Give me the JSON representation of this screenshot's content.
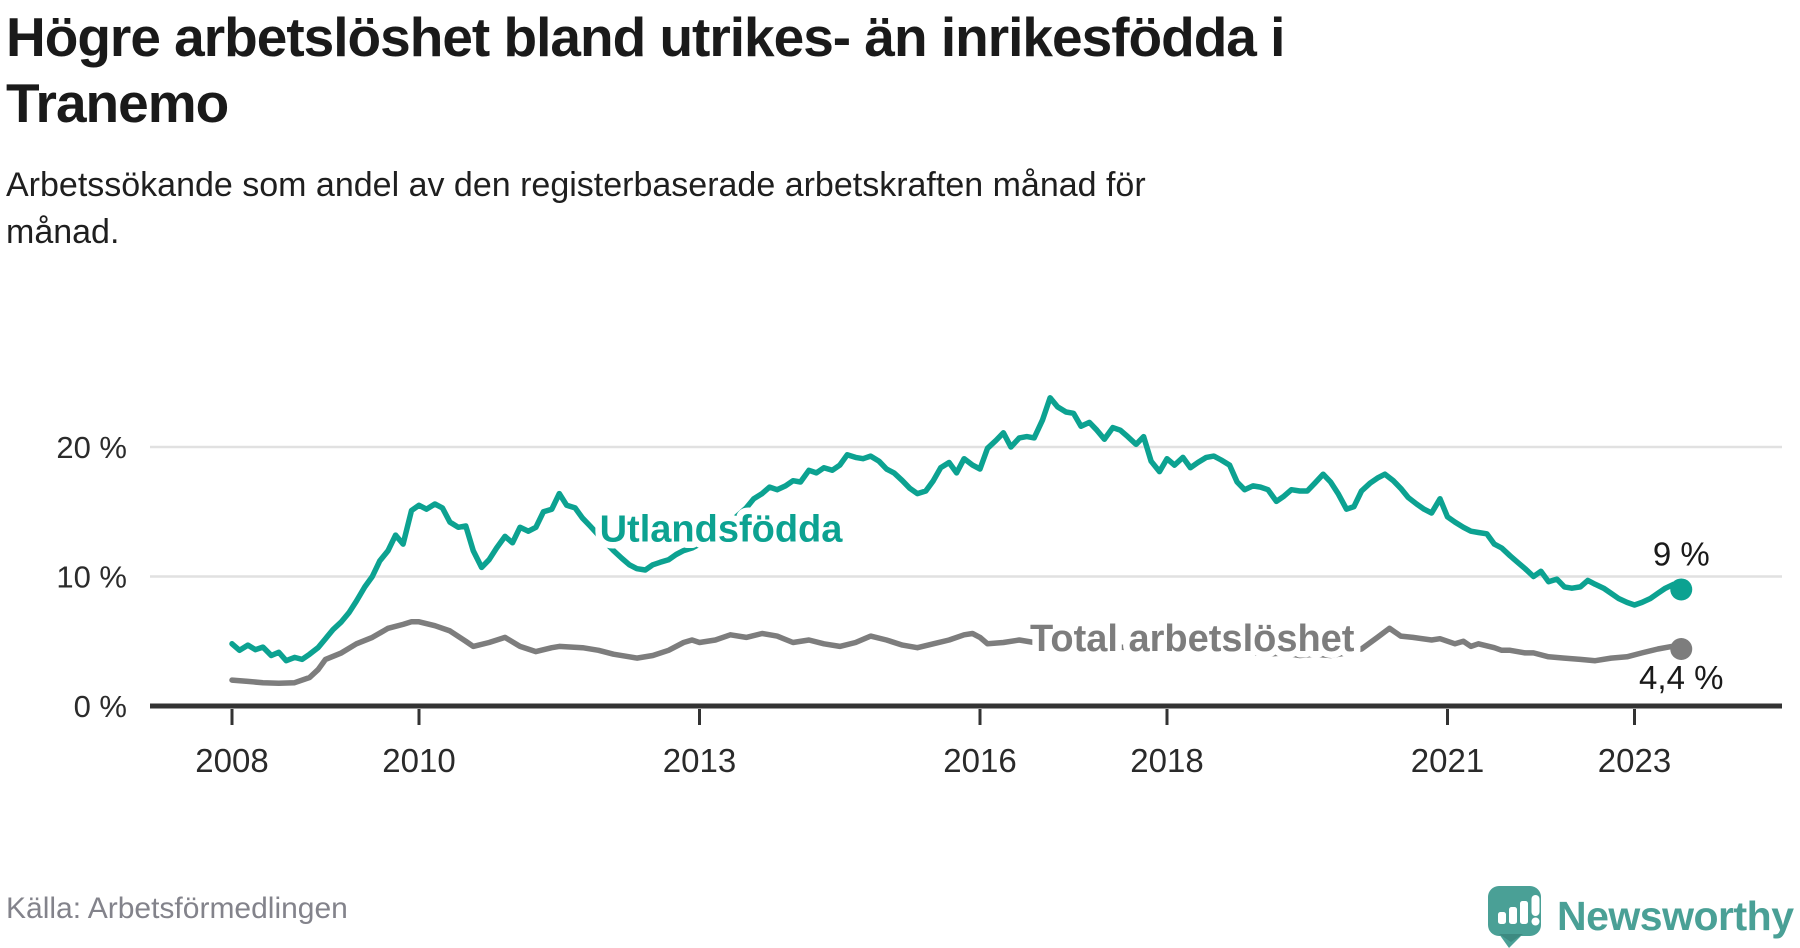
{
  "header": {
    "title_lines": [
      "Högre arbetslöshet bland utrikes- än inrikesfödda i",
      "Tranemo"
    ],
    "subtitle_lines": [
      "Arbetssökande som andel av den registerbaserade arbetskraften månad för",
      "månad."
    ]
  },
  "footer": {
    "source": "Källa: Arbetsförmedlingen",
    "brand": "Newsworthy"
  },
  "colors": {
    "accent_teal": "#0ca291",
    "line_gray": "#7d7d7d",
    "grid": "#e1e1e1",
    "axis": "#333333",
    "text_dark": "#1a1a1a",
    "text_muted": "#83838b",
    "brand_teal": "#4aa096"
  },
  "chart_data": {
    "type": "line",
    "title": "Högre arbetslöshet bland utrikes- än inrikesfödda i Tranemo",
    "subtitle": "Arbetssökande som andel av den registerbaserade arbetskraften månad för månad.",
    "xlabel": "",
    "ylabel": "",
    "grid": true,
    "legend_position": "inline-labels",
    "x_axis": {
      "tick_years": [
        2008,
        2010,
        2013,
        2016,
        2018,
        2021,
        2023
      ],
      "tick_labels": [
        "2008",
        "2010",
        "2013",
        "2016",
        "2018",
        "2021",
        "2023"
      ],
      "range": [
        2007.1,
        2024.6
      ]
    },
    "y_axis": {
      "ticks": [
        0,
        10,
        20
      ],
      "tick_labels": [
        "0 %",
        "10 %",
        "20 %"
      ],
      "gridlines": [
        10,
        20
      ],
      "range": [
        0,
        24.5
      ]
    },
    "series": [
      {
        "name": "Total arbetslöshet",
        "color": "#7d7d7d",
        "end_label": "4,4 %",
        "end_value": 4.4,
        "label_at": {
          "year": 2018.27,
          "value": 4.25
        },
        "points": [
          [
            2008.0,
            2.0
          ],
          [
            2008.17,
            1.9
          ],
          [
            2008.33,
            1.8
          ],
          [
            2008.5,
            1.75
          ],
          [
            2008.67,
            1.8
          ],
          [
            2008.83,
            2.2
          ],
          [
            2008.92,
            2.8
          ],
          [
            2009.0,
            3.6
          ],
          [
            2009.17,
            4.1
          ],
          [
            2009.33,
            4.8
          ],
          [
            2009.5,
            5.3
          ],
          [
            2009.67,
            6.0
          ],
          [
            2009.83,
            6.3
          ],
          [
            2009.92,
            6.5
          ],
          [
            2010.0,
            6.5
          ],
          [
            2010.17,
            6.2
          ],
          [
            2010.33,
            5.8
          ],
          [
            2010.5,
            5.0
          ],
          [
            2010.58,
            4.6
          ],
          [
            2010.75,
            4.9
          ],
          [
            2010.92,
            5.3
          ],
          [
            2011.08,
            4.6
          ],
          [
            2011.25,
            4.2
          ],
          [
            2011.42,
            4.5
          ],
          [
            2011.5,
            4.6
          ],
          [
            2011.75,
            4.5
          ],
          [
            2011.92,
            4.3
          ],
          [
            2012.08,
            4.0
          ],
          [
            2012.25,
            3.8
          ],
          [
            2012.33,
            3.7
          ],
          [
            2012.5,
            3.9
          ],
          [
            2012.67,
            4.3
          ],
          [
            2012.83,
            4.9
          ],
          [
            2012.92,
            5.1
          ],
          [
            2013.0,
            4.9
          ],
          [
            2013.17,
            5.1
          ],
          [
            2013.33,
            5.5
          ],
          [
            2013.5,
            5.3
          ],
          [
            2013.67,
            5.6
          ],
          [
            2013.83,
            5.4
          ],
          [
            2014.0,
            4.9
          ],
          [
            2014.17,
            5.1
          ],
          [
            2014.33,
            4.8
          ],
          [
            2014.5,
            4.6
          ],
          [
            2014.67,
            4.9
          ],
          [
            2014.83,
            5.4
          ],
          [
            2015.0,
            5.1
          ],
          [
            2015.17,
            4.7
          ],
          [
            2015.33,
            4.5
          ],
          [
            2015.5,
            4.8
          ],
          [
            2015.67,
            5.1
          ],
          [
            2015.83,
            5.5
          ],
          [
            2015.92,
            5.6
          ],
          [
            2016.0,
            5.3
          ],
          [
            2016.08,
            4.8
          ],
          [
            2016.25,
            4.9
          ],
          [
            2016.42,
            5.1
          ],
          [
            2016.58,
            4.9
          ],
          [
            2016.75,
            4.8
          ],
          [
            2016.92,
            4.9
          ],
          [
            2017.08,
            4.7
          ],
          [
            2017.25,
            4.5
          ],
          [
            2017.42,
            4.6
          ],
          [
            2017.58,
            4.5
          ],
          [
            2017.75,
            4.4
          ],
          [
            2017.92,
            4.5
          ],
          [
            2018.08,
            4.3
          ],
          [
            2018.25,
            4.4
          ],
          [
            2018.42,
            4.2
          ],
          [
            2018.58,
            4.3
          ],
          [
            2018.75,
            4.2
          ],
          [
            2018.92,
            4.1
          ],
          [
            2019.08,
            4.0
          ],
          [
            2019.25,
            4.1
          ],
          [
            2019.42,
            3.9
          ],
          [
            2019.58,
            4.0
          ],
          [
            2019.75,
            3.9
          ],
          [
            2019.92,
            4.1
          ],
          [
            2020.08,
            4.4
          ],
          [
            2020.25,
            5.3
          ],
          [
            2020.38,
            6.0
          ],
          [
            2020.5,
            5.4
          ],
          [
            2020.63,
            5.3
          ],
          [
            2020.83,
            5.1
          ],
          [
            2020.92,
            5.2
          ],
          [
            2021.08,
            4.8
          ],
          [
            2021.17,
            5.0
          ],
          [
            2021.25,
            4.6
          ],
          [
            2021.33,
            4.8
          ],
          [
            2021.5,
            4.5
          ],
          [
            2021.58,
            4.3
          ],
          [
            2021.67,
            4.3
          ],
          [
            2021.83,
            4.1
          ],
          [
            2021.92,
            4.1
          ],
          [
            2022.08,
            3.8
          ],
          [
            2022.25,
            3.7
          ],
          [
            2022.42,
            3.6
          ],
          [
            2022.58,
            3.5
          ],
          [
            2022.75,
            3.7
          ],
          [
            2022.92,
            3.8
          ],
          [
            2023.08,
            4.1
          ],
          [
            2023.25,
            4.4
          ],
          [
            2023.4,
            4.6
          ],
          [
            2023.5,
            4.4
          ]
        ]
      },
      {
        "name": "Utlandsfödda",
        "color": "#0ca291",
        "end_label": "9 %",
        "end_value": 9.0,
        "label_at": {
          "year": 2013.23,
          "value": 12.7
        },
        "points": [
          [
            2008.0,
            4.8
          ],
          [
            2008.08,
            4.3
          ],
          [
            2008.17,
            4.7
          ],
          [
            2008.25,
            4.35
          ],
          [
            2008.33,
            4.55
          ],
          [
            2008.42,
            3.9
          ],
          [
            2008.5,
            4.15
          ],
          [
            2008.58,
            3.5
          ],
          [
            2008.67,
            3.75
          ],
          [
            2008.75,
            3.6
          ],
          [
            2008.83,
            4.0
          ],
          [
            2008.92,
            4.5
          ],
          [
            2009.0,
            5.2
          ],
          [
            2009.08,
            5.9
          ],
          [
            2009.17,
            6.5
          ],
          [
            2009.25,
            7.2
          ],
          [
            2009.33,
            8.1
          ],
          [
            2009.42,
            9.2
          ],
          [
            2009.5,
            10.0
          ],
          [
            2009.58,
            11.2
          ],
          [
            2009.67,
            12.0
          ],
          [
            2009.75,
            13.2
          ],
          [
            2009.83,
            12.5
          ],
          [
            2009.92,
            15.1
          ],
          [
            2010.0,
            15.5
          ],
          [
            2010.08,
            15.2
          ],
          [
            2010.17,
            15.6
          ],
          [
            2010.25,
            15.3
          ],
          [
            2010.33,
            14.2
          ],
          [
            2010.42,
            13.8
          ],
          [
            2010.5,
            13.9
          ],
          [
            2010.58,
            12.0
          ],
          [
            2010.67,
            10.7
          ],
          [
            2010.75,
            11.3
          ],
          [
            2010.83,
            12.2
          ],
          [
            2010.92,
            13.1
          ],
          [
            2011.0,
            12.6
          ],
          [
            2011.08,
            13.8
          ],
          [
            2011.17,
            13.5
          ],
          [
            2011.25,
            13.8
          ],
          [
            2011.33,
            15.0
          ],
          [
            2011.42,
            15.2
          ],
          [
            2011.5,
            16.4
          ],
          [
            2011.58,
            15.5
          ],
          [
            2011.67,
            15.3
          ],
          [
            2011.75,
            14.5
          ],
          [
            2011.83,
            13.9
          ],
          [
            2011.92,
            13.2
          ],
          [
            2012.0,
            12.6
          ],
          [
            2012.08,
            12.0
          ],
          [
            2012.17,
            11.4
          ],
          [
            2012.25,
            10.9
          ],
          [
            2012.33,
            10.6
          ],
          [
            2012.42,
            10.5
          ],
          [
            2012.5,
            10.9
          ],
          [
            2012.58,
            11.1
          ],
          [
            2012.67,
            11.3
          ],
          [
            2012.75,
            11.7
          ],
          [
            2012.83,
            12.0
          ],
          [
            2012.92,
            12.2
          ],
          [
            2013.0,
            12.5
          ],
          [
            2013.17,
            13.2
          ],
          [
            2013.33,
            14.2
          ],
          [
            2013.5,
            15.3
          ],
          [
            2013.58,
            16.0
          ],
          [
            2013.67,
            16.4
          ],
          [
            2013.75,
            16.9
          ],
          [
            2013.83,
            16.7
          ],
          [
            2013.92,
            17.0
          ],
          [
            2014.0,
            17.4
          ],
          [
            2014.08,
            17.3
          ],
          [
            2014.17,
            18.2
          ],
          [
            2014.25,
            18.0
          ],
          [
            2014.33,
            18.4
          ],
          [
            2014.42,
            18.2
          ],
          [
            2014.5,
            18.6
          ],
          [
            2014.58,
            19.4
          ],
          [
            2014.67,
            19.2
          ],
          [
            2014.75,
            19.1
          ],
          [
            2014.83,
            19.3
          ],
          [
            2014.92,
            18.9
          ],
          [
            2015.0,
            18.3
          ],
          [
            2015.08,
            18.0
          ],
          [
            2015.17,
            17.4
          ],
          [
            2015.25,
            16.8
          ],
          [
            2015.33,
            16.4
          ],
          [
            2015.42,
            16.6
          ],
          [
            2015.5,
            17.4
          ],
          [
            2015.58,
            18.4
          ],
          [
            2015.67,
            18.8
          ],
          [
            2015.75,
            18.0
          ],
          [
            2015.83,
            19.1
          ],
          [
            2015.92,
            18.6
          ],
          [
            2016.0,
            18.3
          ],
          [
            2016.08,
            19.9
          ],
          [
            2016.17,
            20.5
          ],
          [
            2016.25,
            21.1
          ],
          [
            2016.33,
            20.0
          ],
          [
            2016.42,
            20.7
          ],
          [
            2016.5,
            20.8
          ],
          [
            2016.58,
            20.7
          ],
          [
            2016.67,
            22.1
          ],
          [
            2016.75,
            23.8
          ],
          [
            2016.83,
            23.1
          ],
          [
            2016.92,
            22.7
          ],
          [
            2017.0,
            22.6
          ],
          [
            2017.08,
            21.6
          ],
          [
            2017.17,
            21.9
          ],
          [
            2017.25,
            21.3
          ],
          [
            2017.33,
            20.6
          ],
          [
            2017.42,
            21.5
          ],
          [
            2017.5,
            21.3
          ],
          [
            2017.58,
            20.8
          ],
          [
            2017.67,
            20.2
          ],
          [
            2017.75,
            20.8
          ],
          [
            2017.83,
            18.9
          ],
          [
            2017.92,
            18.1
          ],
          [
            2018.0,
            19.1
          ],
          [
            2018.08,
            18.6
          ],
          [
            2018.17,
            19.2
          ],
          [
            2018.25,
            18.4
          ],
          [
            2018.33,
            18.8
          ],
          [
            2018.42,
            19.2
          ],
          [
            2018.5,
            19.3
          ],
          [
            2018.58,
            19.0
          ],
          [
            2018.67,
            18.6
          ],
          [
            2018.75,
            17.3
          ],
          [
            2018.83,
            16.7
          ],
          [
            2018.92,
            17.0
          ],
          [
            2019.0,
            16.9
          ],
          [
            2019.08,
            16.7
          ],
          [
            2019.17,
            15.8
          ],
          [
            2019.25,
            16.2
          ],
          [
            2019.33,
            16.7
          ],
          [
            2019.42,
            16.6
          ],
          [
            2019.5,
            16.6
          ],
          [
            2019.58,
            17.2
          ],
          [
            2019.67,
            17.9
          ],
          [
            2019.75,
            17.3
          ],
          [
            2019.83,
            16.4
          ],
          [
            2019.92,
            15.2
          ],
          [
            2020.0,
            15.4
          ],
          [
            2020.08,
            16.6
          ],
          [
            2020.17,
            17.2
          ],
          [
            2020.25,
            17.6
          ],
          [
            2020.33,
            17.9
          ],
          [
            2020.42,
            17.4
          ],
          [
            2020.5,
            16.8
          ],
          [
            2020.58,
            16.1
          ],
          [
            2020.67,
            15.6
          ],
          [
            2020.75,
            15.2
          ],
          [
            2020.83,
            14.9
          ],
          [
            2020.92,
            16.0
          ],
          [
            2021.0,
            14.6
          ],
          [
            2021.08,
            14.2
          ],
          [
            2021.17,
            13.8
          ],
          [
            2021.25,
            13.5
          ],
          [
            2021.33,
            13.4
          ],
          [
            2021.42,
            13.3
          ],
          [
            2021.5,
            12.5
          ],
          [
            2021.58,
            12.2
          ],
          [
            2021.67,
            11.6
          ],
          [
            2021.75,
            11.1
          ],
          [
            2021.83,
            10.6
          ],
          [
            2021.92,
            10.0
          ],
          [
            2022.0,
            10.4
          ],
          [
            2022.08,
            9.6
          ],
          [
            2022.17,
            9.8
          ],
          [
            2022.25,
            9.2
          ],
          [
            2022.33,
            9.1
          ],
          [
            2022.42,
            9.2
          ],
          [
            2022.5,
            9.7
          ],
          [
            2022.58,
            9.4
          ],
          [
            2022.67,
            9.1
          ],
          [
            2022.75,
            8.7
          ],
          [
            2022.83,
            8.3
          ],
          [
            2022.92,
            8.0
          ],
          [
            2023.0,
            7.8
          ],
          [
            2023.08,
            8.0
          ],
          [
            2023.17,
            8.3
          ],
          [
            2023.25,
            8.7
          ],
          [
            2023.33,
            9.1
          ],
          [
            2023.42,
            9.4
          ],
          [
            2023.5,
            9.0
          ]
        ]
      }
    ]
  }
}
